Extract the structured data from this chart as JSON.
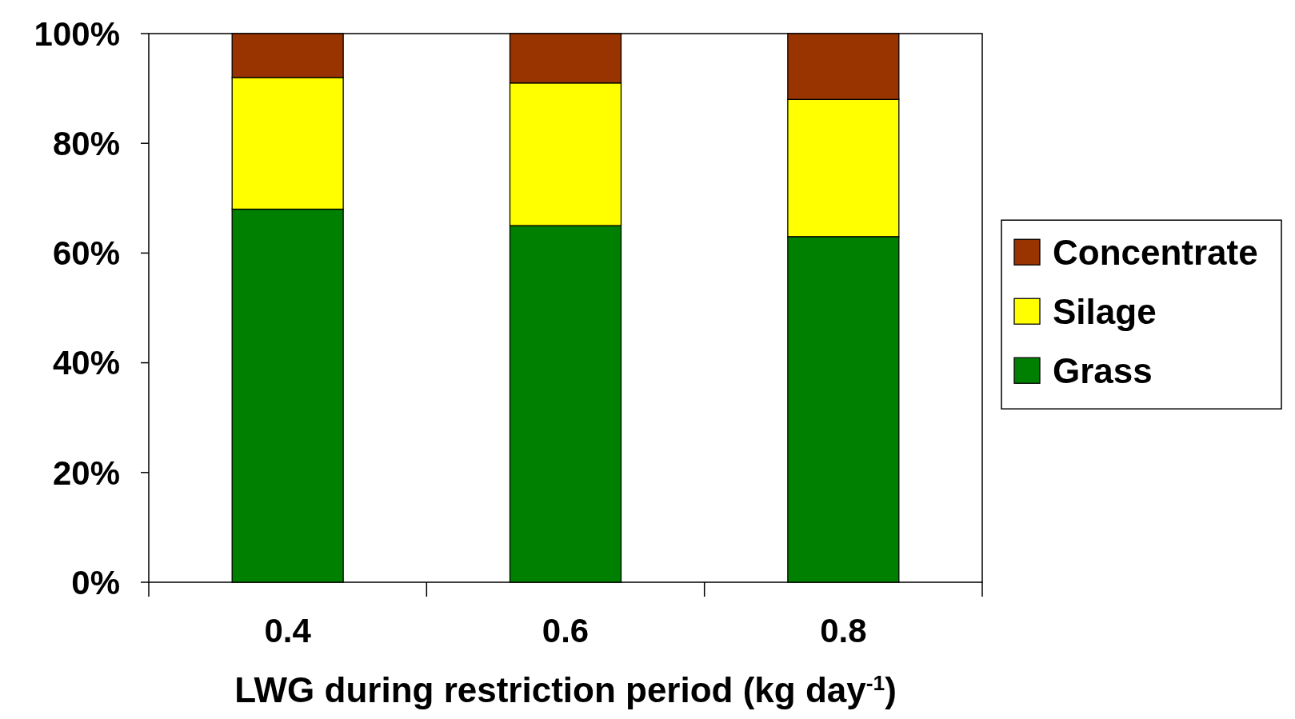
{
  "chart_data": {
    "type": "bar",
    "stacked": true,
    "xlabel": "LWG during restriction period (kg day$^{-1}$)",
    "categories": [
      "0.4",
      "0.6",
      "0.8"
    ],
    "series": [
      {
        "name": "Grass",
        "color": "#008000",
        "values": [
          68,
          65,
          63
        ]
      },
      {
        "name": "Silage",
        "color": "#ffff00",
        "values": [
          24,
          26,
          25
        ]
      },
      {
        "name": "Concentrate",
        "color": "#993300",
        "values": [
          8,
          9,
          12
        ]
      }
    ],
    "ylim": [
      0,
      100
    ],
    "yticks": [
      {
        "value": 0,
        "label": "0%"
      },
      {
        "value": 20,
        "label": "20%"
      },
      {
        "value": 40,
        "label": "40%"
      },
      {
        "value": 60,
        "label": "60%"
      },
      {
        "value": 80,
        "label": "80%"
      },
      {
        "value": 100,
        "label": "100%"
      }
    ],
    "grid": false,
    "legend": "right"
  }
}
